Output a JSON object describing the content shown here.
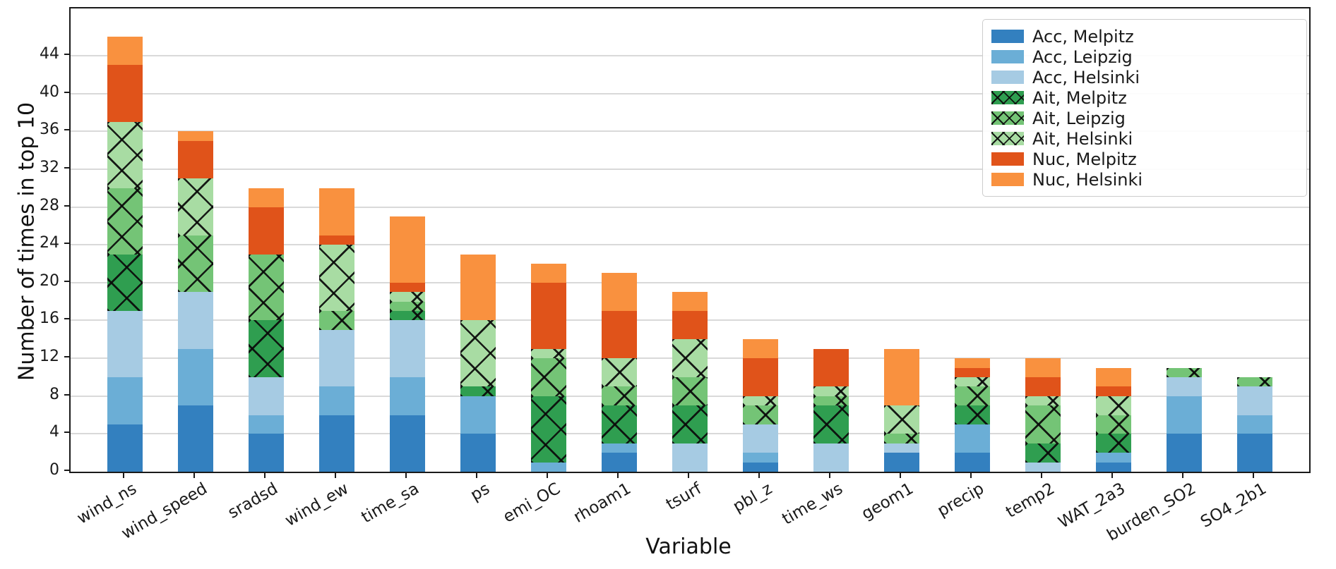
{
  "figure": {
    "title": "",
    "ylabel": "Number of times in top 10",
    "xlabel": "Variable"
  },
  "chart_data": {
    "type": "bar",
    "stacked": true,
    "title": "",
    "xlabel": "Variable",
    "ylabel": "Number of times in top 10",
    "ylim": [
      0,
      49
    ],
    "yticks": [
      0,
      4,
      8,
      12,
      16,
      20,
      24,
      28,
      32,
      36,
      40,
      44
    ],
    "grid": "horizontal",
    "gridline_color": "#d9d9d9",
    "legend_position": "upper-right",
    "categories": [
      "wind_ns",
      "wind_speed",
      "sradsd",
      "wind_ew",
      "time_sa",
      "ps",
      "emi_OC",
      "rhoam1",
      "tsurf",
      "pbl_z",
      "time_ws",
      "geom1",
      "precip",
      "temp2",
      "WAT_2a3",
      "burden_SO2",
      "SO4_2b1"
    ],
    "totals": [
      46,
      36,
      30,
      30,
      27,
      23,
      22,
      21,
      19,
      14,
      13,
      13,
      12,
      12,
      11,
      11,
      10
    ],
    "series": [
      {
        "name": "Acc, Melpitz",
        "color": "#3380bf",
        "hatch": false,
        "values": [
          5,
          7,
          4,
          6,
          6,
          4,
          0,
          2,
          0,
          1,
          0,
          2,
          2,
          0,
          1,
          4,
          4
        ]
      },
      {
        "name": "Acc, Leipzig",
        "color": "#6baed6",
        "hatch": false,
        "values": [
          5,
          6,
          2,
          3,
          4,
          4,
          1,
          1,
          0,
          1,
          0,
          0,
          3,
          0,
          1,
          4,
          2
        ]
      },
      {
        "name": "Acc, Helsinki",
        "color": "#a6cbe3",
        "hatch": false,
        "values": [
          7,
          6,
          4,
          6,
          6,
          0,
          0,
          0,
          3,
          3,
          3,
          1,
          0,
          1,
          0,
          2,
          3
        ]
      },
      {
        "name": "Ait, Melpitz",
        "color": "#2f9e50",
        "hatch": true,
        "values": [
          6,
          0,
          6,
          0,
          1,
          1,
          7,
          4,
          4,
          0,
          4,
          0,
          2,
          2,
          2,
          0,
          0
        ]
      },
      {
        "name": "Ait, Leipzig",
        "color": "#74c476",
        "hatch": true,
        "values": [
          7,
          6,
          7,
          2,
          1,
          0,
          4,
          2,
          3,
          2,
          1,
          1,
          2,
          4,
          2,
          1,
          1
        ]
      },
      {
        "name": "Ait, Helsinki",
        "color": "#a8dca3",
        "hatch": true,
        "values": [
          7,
          6,
          0,
          7,
          1,
          7,
          1,
          3,
          4,
          1,
          1,
          3,
          1,
          1,
          2,
          0,
          0
        ]
      },
      {
        "name": "Nuc, Melpitz",
        "color": "#e0531a",
        "hatch": false,
        "values": [
          6,
          4,
          5,
          1,
          1,
          0,
          7,
          5,
          3,
          4,
          4,
          0,
          1,
          2,
          1,
          0,
          0
        ]
      },
      {
        "name": "Nuc, Helsinki",
        "color": "#f9913f",
        "hatch": false,
        "values": [
          3,
          1,
          2,
          5,
          7,
          7,
          2,
          4,
          2,
          2,
          0,
          6,
          1,
          2,
          2,
          0,
          0
        ]
      }
    ]
  }
}
